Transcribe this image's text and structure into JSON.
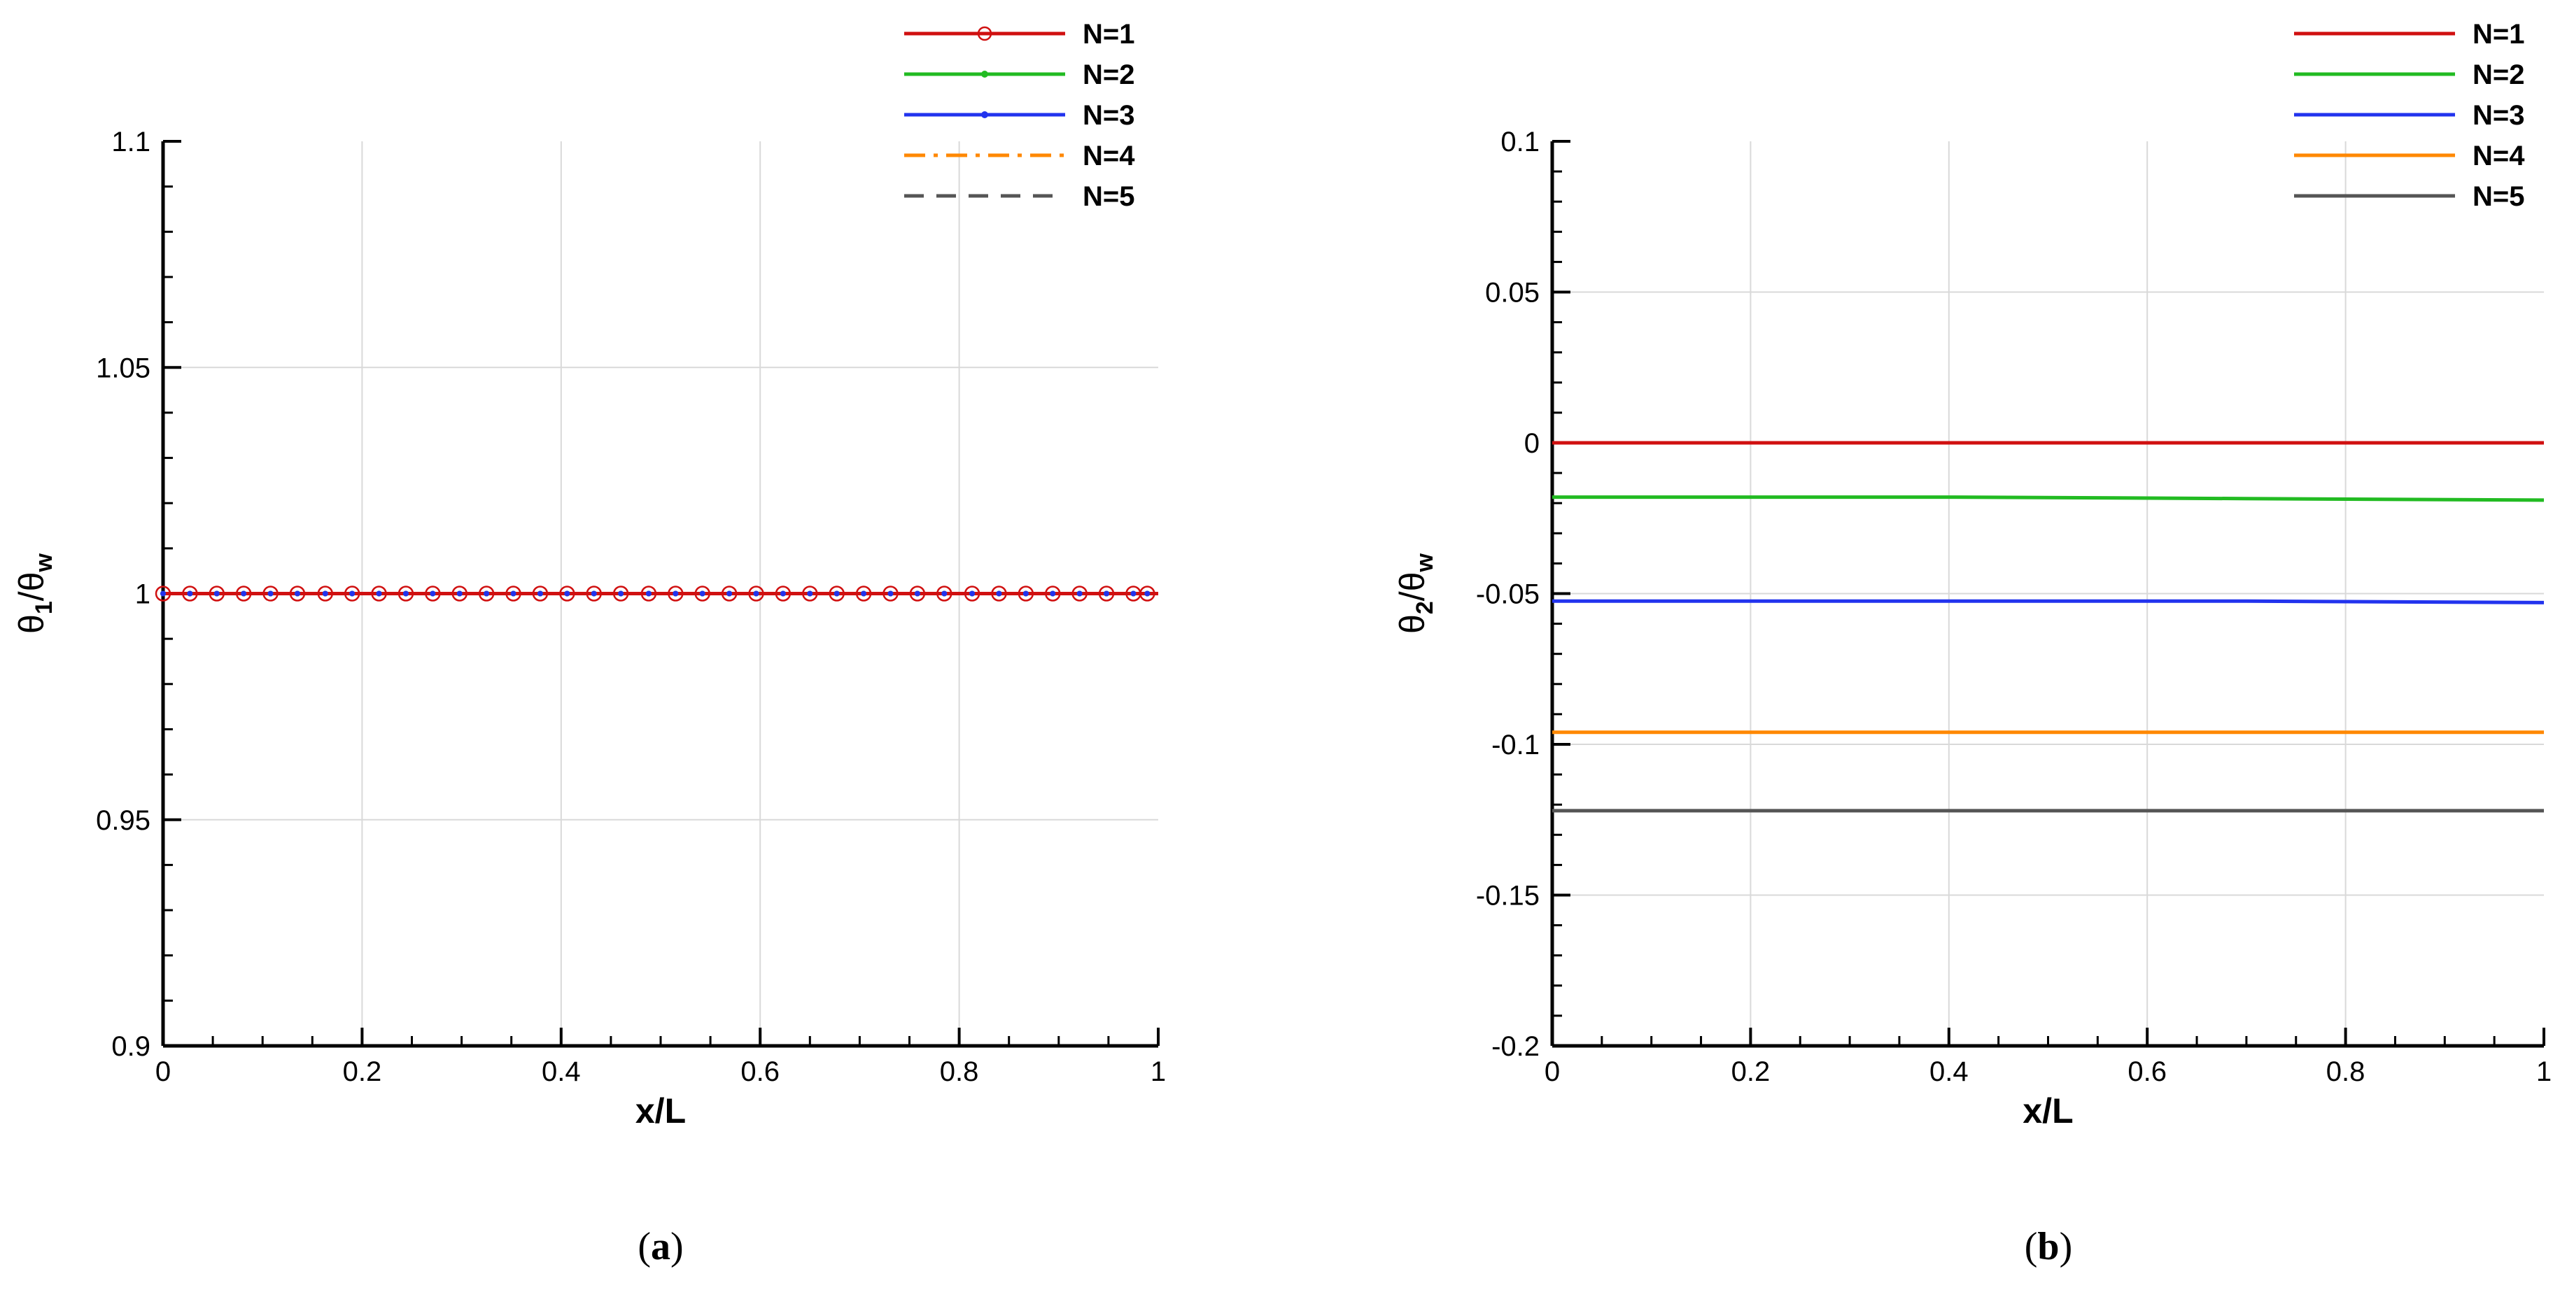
{
  "chart_data": [
    {
      "type": "line",
      "panel_label": "a",
      "xlabel": "x/L",
      "ylabel_parts": {
        "theta": "θ",
        "sub": "1",
        "slash": "/θ",
        "sub2": "w"
      },
      "xlim": [
        0,
        1
      ],
      "ylim": [
        0.9,
        1.1
      ],
      "x_ticks": [
        0,
        0.2,
        0.4,
        0.6,
        0.8,
        1
      ],
      "x_tick_labels": [
        "0",
        "0.2",
        "0.4",
        "0.6",
        "0.8",
        "1"
      ],
      "y_ticks": [
        0.9,
        0.95,
        1,
        1.05,
        1.1
      ],
      "y_tick_labels": [
        "0.9",
        "0.95",
        "1",
        "1.05",
        "1.1"
      ],
      "grid": true,
      "legend_position": "top-right",
      "marker_x": [
        0,
        0.027,
        0.054,
        0.081,
        0.108,
        0.135,
        0.163,
        0.19,
        0.217,
        0.244,
        0.271,
        0.298,
        0.325,
        0.352,
        0.379,
        0.406,
        0.433,
        0.46,
        0.488,
        0.515,
        0.542,
        0.569,
        0.596,
        0.623,
        0.65,
        0.677,
        0.704,
        0.731,
        0.758,
        0.785,
        0.813,
        0.84,
        0.867,
        0.894,
        0.921,
        0.948,
        0.975,
        0.989
      ],
      "series": [
        {
          "name": "N=1",
          "color": "#d01010",
          "dash": "solid",
          "marker": "open-circle",
          "x": [
            0,
            1
          ],
          "y": [
            1,
            1
          ]
        },
        {
          "name": "N=2",
          "color": "#22bb22",
          "dash": "solid",
          "marker": "small-dot",
          "x": [
            0,
            1
          ],
          "y": [
            1,
            1
          ]
        },
        {
          "name": "N=3",
          "color": "#2233ee",
          "dash": "solid",
          "marker": "small-dot",
          "x": [
            0,
            1
          ],
          "y": [
            1,
            1
          ]
        },
        {
          "name": "N=4",
          "color": "#ff8800",
          "dash": "dash-dot",
          "marker": "none",
          "x": [
            0,
            1
          ],
          "y": [
            1,
            1
          ]
        },
        {
          "name": "N=5",
          "color": "#555555",
          "dash": "dashed",
          "marker": "none",
          "x": [
            0,
            1
          ],
          "y": [
            1,
            1
          ]
        }
      ]
    },
    {
      "type": "line",
      "panel_label": "b",
      "xlabel": "x/L",
      "ylabel_parts": {
        "theta": "θ",
        "sub": "2",
        "slash": "/θ",
        "sub2": "w"
      },
      "xlim": [
        0,
        1
      ],
      "ylim": [
        -0.2,
        0.1
      ],
      "x_ticks": [
        0,
        0.2,
        0.4,
        0.6,
        0.8,
        1
      ],
      "x_tick_labels": [
        "0",
        "0.2",
        "0.4",
        "0.6",
        "0.8",
        "1"
      ],
      "y_ticks": [
        -0.2,
        -0.15,
        -0.1,
        -0.05,
        0,
        0.05,
        0.1
      ],
      "y_tick_labels": [
        "-0.2",
        "-0.15",
        "-0.1",
        "-0.05",
        "0",
        "0.05",
        "0.1"
      ],
      "grid": true,
      "legend_position": "top-right",
      "series": [
        {
          "name": "N=1",
          "color": "#d01010",
          "dash": "solid",
          "x": [
            0,
            1
          ],
          "y": [
            0,
            0
          ]
        },
        {
          "name": "N=2",
          "color": "#22bb22",
          "dash": "solid",
          "x": [
            0,
            0.4,
            0.7,
            1
          ],
          "y": [
            -0.018,
            -0.018,
            -0.0185,
            -0.019
          ]
        },
        {
          "name": "N=3",
          "color": "#2233ee",
          "dash": "solid",
          "x": [
            0,
            0.7,
            1
          ],
          "y": [
            -0.0525,
            -0.0525,
            -0.053
          ]
        },
        {
          "name": "N=4",
          "color": "#ff8800",
          "dash": "solid",
          "x": [
            0,
            1
          ],
          "y": [
            -0.096,
            -0.096
          ]
        },
        {
          "name": "N=5",
          "color": "#555555",
          "dash": "solid",
          "x": [
            0,
            1
          ],
          "y": [
            -0.122,
            -0.122
          ]
        }
      ]
    }
  ]
}
